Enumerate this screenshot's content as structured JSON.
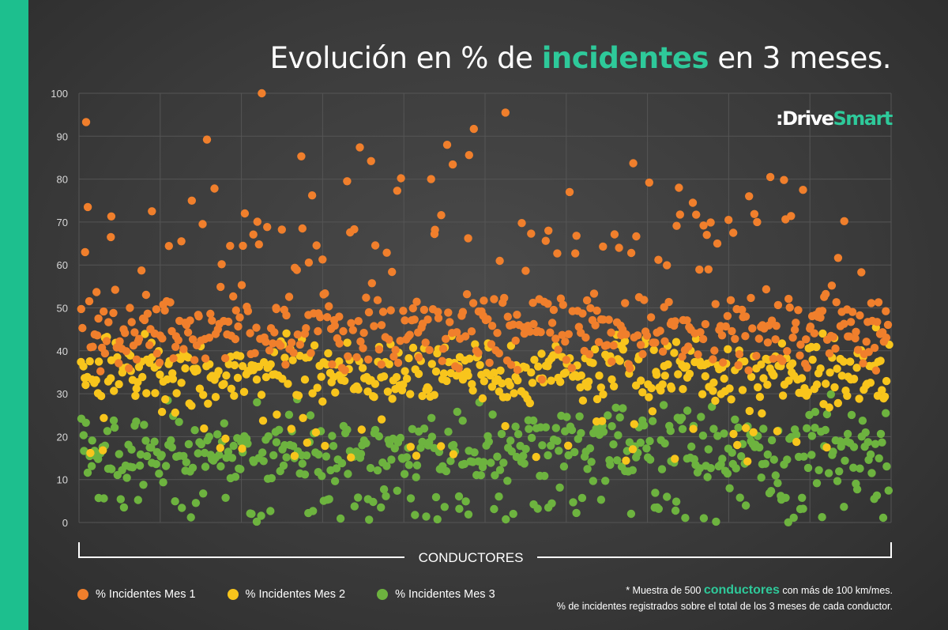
{
  "title": {
    "before": "Evolución en % de ",
    "highlight": "incidentes",
    "after": " en 3 meses."
  },
  "logo": {
    "part1": ":Drive",
    "part2": "Smart"
  },
  "footnote": {
    "line1_before": "* Muestra de 500 ",
    "line1_highlight": "conductores",
    "line1_after": " con más de 100 km/mes.",
    "line2": "% de incidentes registrados sobre el total de los 3 meses de cada conductor."
  },
  "colors": {
    "background": "#3b3b3b",
    "accent_bar": "#1dbf8e",
    "highlight": "#2ec99a",
    "grid": "#555555",
    "mes1": "#f07f2c",
    "mes2": "#f8c51c",
    "mes3": "#6db33f"
  },
  "chart_data": {
    "type": "scatter",
    "title": "Evolución en % de incidentes en 3 meses.",
    "xlabel": "CONDUCTORES",
    "ylabel": "",
    "ylim": [
      0,
      100
    ],
    "yticks": [
      0,
      10,
      20,
      30,
      40,
      50,
      60,
      70,
      80,
      90,
      100
    ],
    "n_points_per_series": 500,
    "grid": true,
    "legend_position": "bottom-left",
    "series": [
      {
        "name": "% Incidentes Mes 1",
        "color": "#f07f2c",
        "typical_range": [
          35,
          60
        ],
        "observed_min": 33,
        "observed_max": 100,
        "notable_values": [
          100,
          95.5,
          93.3,
          91.7,
          89.2,
          88,
          87.4,
          85.6,
          85.3,
          84.2,
          83.7,
          83.4,
          80.5,
          80.2,
          80,
          79.8,
          79.5,
          79.2,
          78,
          77.8,
          77.5,
          77.3,
          77,
          76.2,
          76,
          75,
          74.5,
          73.5,
          72.5,
          72,
          71.6,
          71.3,
          70.5,
          70,
          68.3,
          68,
          67.3,
          67,
          66.5,
          65.5,
          65,
          64.3,
          64,
          63
        ]
      },
      {
        "name": "% Incidentes Mes 2",
        "color": "#f8c51c",
        "typical_range": [
          25,
          45
        ],
        "observed_min": 6,
        "observed_max": 50
      },
      {
        "name": "% Incidentes Mes 3",
        "color": "#6db33f",
        "typical_range": [
          0,
          30
        ],
        "observed_min": -3,
        "observed_max": 33
      }
    ]
  }
}
